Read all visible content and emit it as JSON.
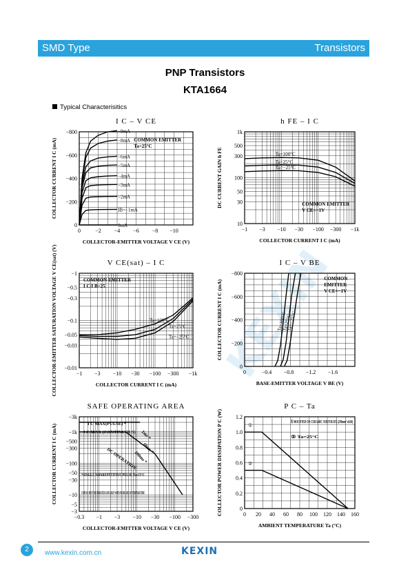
{
  "header": {
    "left": "SMD Type",
    "right": "Transistors"
  },
  "title": "PNP  Transistors",
  "part": "KTA1664",
  "section": "Typical  Characterisitics",
  "footer": {
    "page": "2",
    "url": "www.kexin.com.cn",
    "logo": "KEXIN"
  },
  "colors": {
    "accent": "#2aa3dd"
  },
  "chart_data": [
    {
      "id": "ic-vce",
      "type": "line",
      "title": "I C  –  V CE",
      "xlabel": "COLLECTOR-EMITTER VOLTAGE V CE  (V)",
      "ylabel": "COLLECTOR CURRENT I C  (mA)",
      "xlim": [
        0,
        -12
      ],
      "ylim": [
        0,
        -800
      ],
      "xticks": [
        "0",
        "−2",
        "−4",
        "−6",
        "−8",
        "−10"
      ],
      "yticks": [
        "0",
        "−200",
        "−400",
        "−600",
        "−800"
      ],
      "annotation": "COMMON EMITTER\nTa=25°C",
      "series": [
        {
          "name": "−9mA",
          "x": [
            0,
            -0.3,
            -0.7,
            -1.2,
            -2,
            -3,
            -4
          ],
          "y": [
            0,
            -400,
            -620,
            -720,
            -770,
            -800,
            -810
          ]
        },
        {
          "name": "−8mA",
          "x": [
            0,
            -0.3,
            -0.7,
            -1.2,
            -2,
            -3,
            -4
          ],
          "y": [
            0,
            -380,
            -580,
            -660,
            -700,
            -720,
            -730
          ]
        },
        {
          "name": "−6mA",
          "x": [
            0,
            -0.3,
            -0.7,
            -1.2,
            -2,
            -3,
            -4
          ],
          "y": [
            0,
            -350,
            -500,
            -550,
            -575,
            -585,
            -590
          ]
        },
        {
          "name": "−5mA",
          "x": [
            0,
            -0.3,
            -0.7,
            -1.2,
            -2,
            -3,
            -4
          ],
          "y": [
            0,
            -320,
            -450,
            -490,
            -505,
            -512,
            -515
          ]
        },
        {
          "name": "−4mA",
          "x": [
            0,
            -0.3,
            -0.7,
            -1.2,
            -2,
            -3,
            -4
          ],
          "y": [
            0,
            -280,
            -380,
            -405,
            -415,
            -420,
            -423
          ]
        },
        {
          "name": "−3mA",
          "x": [
            0,
            -0.3,
            -0.7,
            -1.2,
            -2,
            -3,
            -4
          ],
          "y": [
            0,
            -230,
            -320,
            -338,
            -343,
            -346,
            -348
          ]
        },
        {
          "name": "−2mA",
          "x": [
            0,
            -0.3,
            -0.7,
            -1.2,
            -2,
            -3,
            -4
          ],
          "y": [
            0,
            -170,
            -230,
            -240,
            -243,
            -245,
            -246
          ]
        },
        {
          "name": "IB=−1mA",
          "x": [
            0,
            -0.3,
            -0.7,
            -1.2,
            -2,
            -3,
            -4
          ],
          "y": [
            0,
            -90,
            -125,
            -130,
            -132,
            -133,
            -134
          ]
        },
        {
          "name": "0mA",
          "x": [
            0,
            -4
          ],
          "y": [
            0,
            0
          ]
        }
      ]
    },
    {
      "id": "hfe-ic",
      "type": "line",
      "title": "h FE  –  I C",
      "xlabel": "COLLECTOR  CURRENT I C  (mA)",
      "ylabel": "DC CURRENT GAIN h FE",
      "xlim": [
        -1,
        -1000
      ],
      "ylim": [
        10,
        1000
      ],
      "xscale": "log",
      "yscale": "log",
      "xticks": [
        "−1",
        "−3",
        "−10",
        "−30",
        "−100",
        "−300",
        "−1k"
      ],
      "yticks": [
        "10",
        "30",
        "50",
        "100",
        "300",
        "500",
        "1k"
      ],
      "annotation": "COMMON EMITTER\nV CE=−1V",
      "series": [
        {
          "name": "Ta=100°C",
          "x": [
            -1,
            -3,
            -10,
            -30,
            -100,
            -300,
            -1000
          ],
          "y": [
            260,
            270,
            275,
            270,
            240,
            170,
            85
          ]
        },
        {
          "name": "Ta=25°C",
          "x": [
            -1,
            -3,
            -10,
            -30,
            -100,
            -300,
            -1000
          ],
          "y": [
            180,
            186,
            190,
            188,
            170,
            130,
            75
          ]
        },
        {
          "name": "Ta=−25°C",
          "x": [
            -1,
            -3,
            -10,
            -30,
            -100,
            -300,
            -1000
          ],
          "y": [
            135,
            140,
            143,
            142,
            130,
            105,
            65
          ]
        }
      ]
    },
    {
      "id": "vcesat-ic",
      "type": "line",
      "title": "V CE(sat)  –  I C",
      "xlabel": "COLLECTOR  CURRENT I C  (mA)",
      "ylabel": "COLLECTOR-EMITTER SATURATION VOLTAGE V CE(sat)  (V)",
      "xlim": [
        -1,
        -1000
      ],
      "ylim": [
        -0.01,
        -1
      ],
      "xscale": "log",
      "yscale": "log",
      "xticks": [
        "−1",
        "−3",
        "−10",
        "−30",
        "−100",
        "−300",
        "−1k"
      ],
      "yticks": [
        "−0.01",
        "−0.03",
        "−0.05",
        "−0.1",
        "−0.3",
        "−0.5",
        "−1"
      ],
      "annotation": "COMMON EMITTER\nI C/I B=25",
      "series": [
        {
          "name": "Ta=100°C",
          "x": [
            -1,
            -3,
            -10,
            -30,
            -100,
            -300,
            -1000
          ],
          "y": [
            -0.05,
            -0.05,
            -0.055,
            -0.065,
            -0.085,
            -0.13,
            -0.3
          ]
        },
        {
          "name": "Ta=25°C",
          "x": [
            -1,
            -3,
            -10,
            -30,
            -100,
            -300,
            -1000
          ],
          "y": [
            -0.048,
            -0.046,
            -0.046,
            -0.05,
            -0.065,
            -0.11,
            -0.28
          ]
        },
        {
          "name": "Ta=−25°C",
          "x": [
            -1,
            -3,
            -10,
            -30,
            -100,
            -300,
            -1000
          ],
          "y": [
            -0.045,
            -0.042,
            -0.04,
            -0.042,
            -0.055,
            -0.095,
            -0.26
          ]
        }
      ]
    },
    {
      "id": "ic-vbe",
      "type": "line",
      "title": "I C  –  V BE",
      "xlabel": "BASE-EMITTER VOLTAGE V BE  (V)",
      "ylabel": "COLLECTOR CURRENT I C  (mA)",
      "xlim": [
        0,
        -2.0
      ],
      "ylim": [
        0,
        -800
      ],
      "xticks": [
        "0",
        "−0.4",
        "−0.8",
        "−1.2",
        "−1.6"
      ],
      "yticks": [
        "0",
        "−200",
        "−400",
        "−600",
        "−800"
      ],
      "annotation": "COMMON\nEMITTER\nV CE=−1V",
      "series": [
        {
          "name": "Ta=100°C",
          "x": [
            -0.55,
            -0.6,
            -0.65,
            -0.7,
            -0.75,
            -0.8
          ],
          "y": [
            0,
            -50,
            -180,
            -380,
            -600,
            -800
          ]
        },
        {
          "name": "Ta=25°C",
          "x": [
            -0.65,
            -0.7,
            -0.75,
            -0.8,
            -0.85,
            -0.92
          ],
          "y": [
            0,
            -60,
            -200,
            -400,
            -600,
            -800
          ]
        },
        {
          "name": "Ta=−25°C",
          "x": [
            -0.72,
            -0.77,
            -0.82,
            -0.88,
            -0.95,
            -1.02
          ],
          "y": [
            0,
            -50,
            -180,
            -380,
            -600,
            -800
          ]
        }
      ]
    },
    {
      "id": "soa",
      "type": "line",
      "title": "SAFE  OPERATING  AREA",
      "xlabel": "COLLECTOR-EMITTER VOLTAGE V CE  (V)",
      "ylabel": "COLLECTOR CURRENT I C  (mA)",
      "xlim": [
        -0.3,
        -300
      ],
      "ylim": [
        -3,
        -3000
      ],
      "xscale": "log",
      "yscale": "log",
      "xticks": [
        "−0.3",
        "−1",
        "−3",
        "−10",
        "−30",
        "−100",
        "−300"
      ],
      "yticks": [
        "−3",
        "−5",
        "−10",
        "−30",
        "−50",
        "−100",
        "−300",
        "−500",
        "−1k",
        "−3k"
      ],
      "annotations": [
        "I C MAX(PULSE) *",
        "I C MAX (CONTINUOUS)",
        "DC OPERATION",
        "1ms *",
        "10ms *",
        "100ms *",
        "*SINGLE NONREPETITIVE PULSE Ta=25°C",
        "CURVES MUST BE DERATED LINEARLY WITH INCREASE IN TEMPERATURE"
      ],
      "series": [
        {
          "name": "I C MAX(PULSE)",
          "x": [
            -0.3,
            -12
          ],
          "y": [
            -2000,
            -2000
          ]
        },
        {
          "name": "I C MAX (CONTINUOUS)",
          "x": [
            -0.3,
            -5
          ],
          "y": [
            -1000,
            -1000
          ]
        },
        {
          "name": "DC OPERATION",
          "x": [
            -5,
            -30,
            -160
          ],
          "y": [
            -1000,
            -200,
            -10
          ]
        }
      ]
    },
    {
      "id": "pc-ta",
      "type": "line",
      "title": "P C  –  Ta",
      "xlabel": "AMBIENT  TEMPERATURE  Ta    (°C)",
      "ylabel": "COLLECTOR POWER DISSIPATION P C  (W)",
      "xlim": [
        0,
        160
      ],
      "ylim": [
        0,
        1.2
      ],
      "xticks": [
        "0",
        "20",
        "40",
        "60",
        "80",
        "100",
        "120",
        "140",
        "160"
      ],
      "yticks": [
        "0",
        "0.2",
        "0.4",
        "0.6",
        "0.8",
        "1.0",
        "1.2"
      ],
      "legend": [
        "① MOUNTED ON CERAMIC SUBSTRATE (250mm² x0.8t)",
        "② Ta=25°C"
      ],
      "series": [
        {
          "name": "①",
          "x": [
            0,
            25,
            150
          ],
          "y": [
            1.0,
            1.0,
            0
          ]
        },
        {
          "name": "②",
          "x": [
            0,
            25,
            150
          ],
          "y": [
            0.5,
            0.5,
            0
          ]
        }
      ]
    }
  ]
}
